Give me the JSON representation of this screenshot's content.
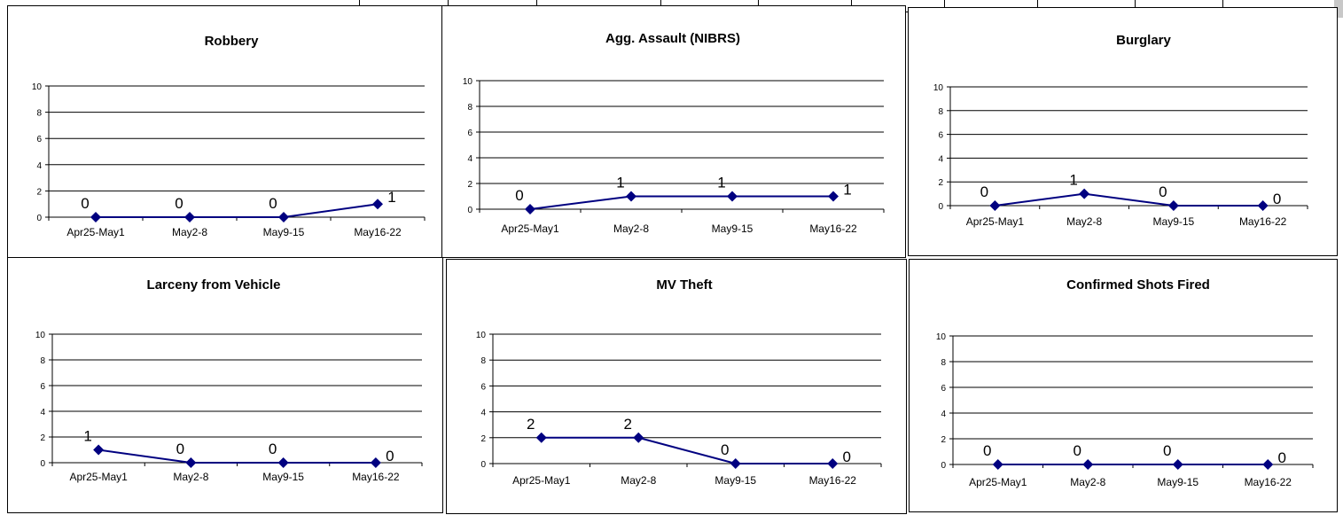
{
  "colors": {
    "series": "#000080",
    "grid": "#000000",
    "background": "#ffffff"
  },
  "chart_data": [
    {
      "type": "line",
      "title": "Robbery",
      "categories": [
        "Apr25-May1",
        "May2-8",
        "May9-15",
        "May16-22"
      ],
      "values": [
        0,
        0,
        0,
        1
      ],
      "data_labels": [
        "0",
        "0",
        "0",
        "1"
      ],
      "ylim": [
        0,
        10
      ],
      "yticks": [
        "0",
        "2",
        "4",
        "6",
        "8",
        "10"
      ],
      "grid": true,
      "marker": "diamond"
    },
    {
      "type": "line",
      "title": "Agg. Assault (NIBRS)",
      "categories": [
        "Apr25-May1",
        "May2-8",
        "May9-15",
        "May16-22"
      ],
      "values": [
        0,
        1,
        1,
        1
      ],
      "data_labels": [
        "0",
        "1",
        "1",
        "1"
      ],
      "ylim": [
        0,
        10
      ],
      "yticks": [
        "0",
        "2",
        "4",
        "6",
        "8",
        "10"
      ],
      "grid": true,
      "marker": "diamond"
    },
    {
      "type": "line",
      "title": "Burglary",
      "categories": [
        "Apr25-May1",
        "May2-8",
        "May9-15",
        "May16-22"
      ],
      "values": [
        0,
        1,
        0,
        0
      ],
      "data_labels": [
        "0",
        "1",
        "0",
        "0"
      ],
      "ylim": [
        0,
        10
      ],
      "yticks": [
        "0",
        "2",
        "4",
        "6",
        "8",
        "10"
      ],
      "grid": true,
      "marker": "diamond"
    },
    {
      "type": "line",
      "title": "Larceny from Vehicle",
      "categories": [
        "Apr25-May1",
        "May2-8",
        "May9-15",
        "May16-22"
      ],
      "values": [
        1,
        0,
        0,
        0
      ],
      "data_labels": [
        "1",
        "0",
        "0",
        "0"
      ],
      "ylim": [
        0,
        10
      ],
      "yticks": [
        "0",
        "2",
        "4",
        "6",
        "8",
        "10"
      ],
      "grid": true,
      "marker": "diamond"
    },
    {
      "type": "line",
      "title": "MV Theft",
      "categories": [
        "Apr25-May1",
        "May2-8",
        "May9-15",
        "May16-22"
      ],
      "values": [
        2,
        2,
        0,
        0
      ],
      "data_labels": [
        "2",
        "2",
        "0",
        "0"
      ],
      "ylim": [
        0,
        10
      ],
      "yticks": [
        "0",
        "2",
        "4",
        "6",
        "8",
        "10"
      ],
      "grid": true,
      "marker": "diamond"
    },
    {
      "type": "line",
      "title": "Confirmed Shots Fired",
      "categories": [
        "Apr25-May1",
        "May2-8",
        "May9-15",
        "May16-22"
      ],
      "values": [
        0,
        0,
        0,
        0
      ],
      "data_labels": [
        "0",
        "0",
        "0",
        "0"
      ],
      "ylim": [
        0,
        10
      ],
      "yticks": [
        "0",
        "2",
        "4",
        "6",
        "8",
        "10"
      ],
      "grid": true,
      "marker": "diamond"
    }
  ]
}
